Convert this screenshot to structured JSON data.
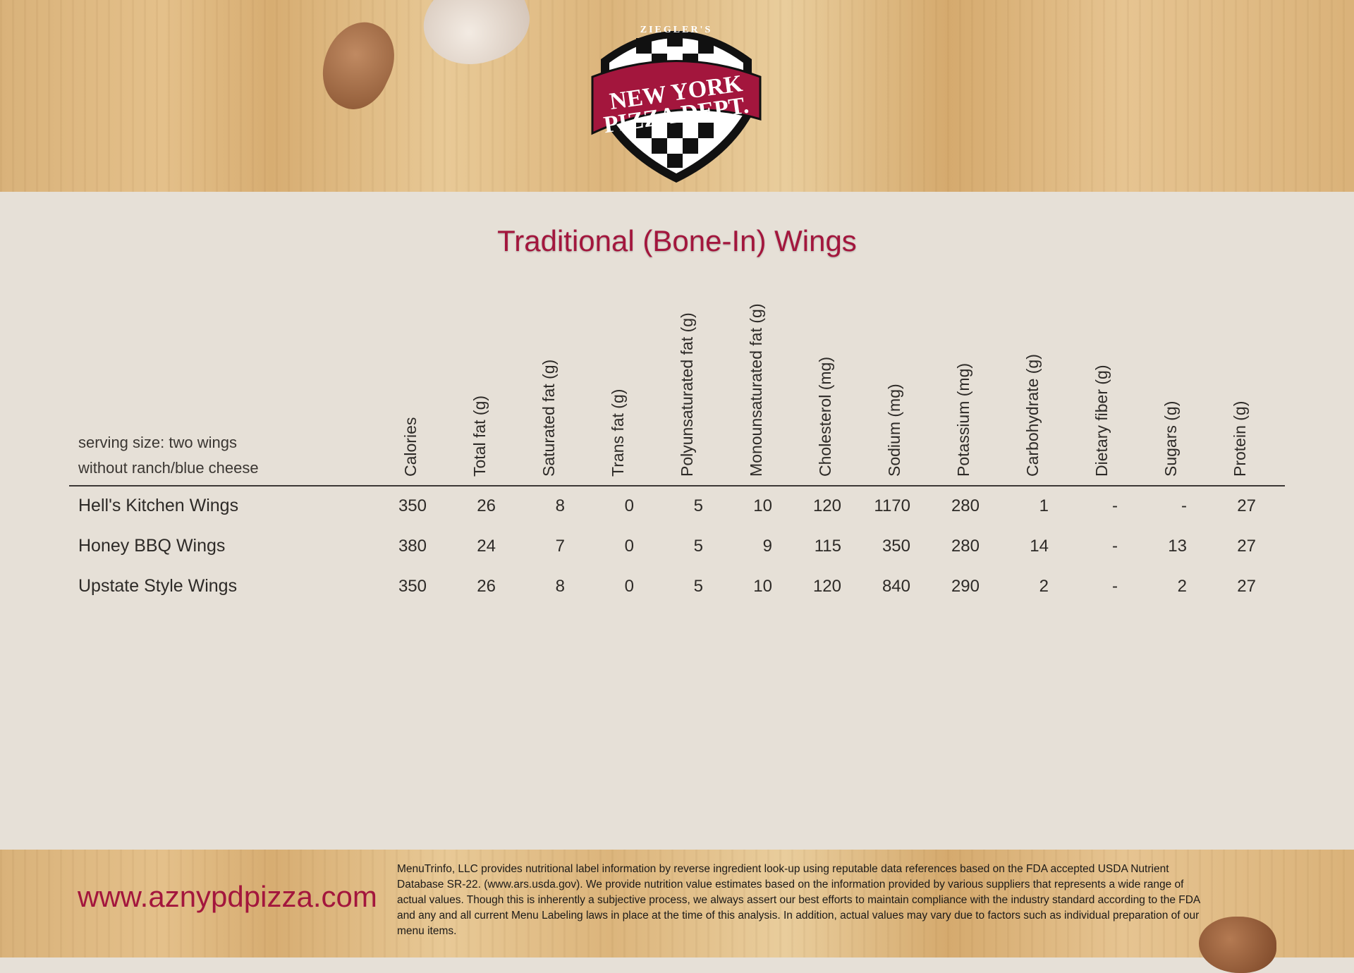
{
  "logo": {
    "top_text": "ZIEGLER'S",
    "line1": "NEW YORK",
    "line2": "PIZZA DEPT."
  },
  "title": "Traditional (Bone-In) Wings",
  "serving": {
    "line1": "serving size: two wings",
    "line2": "without ranch/blue cheese"
  },
  "columns": [
    "Calories",
    "Total fat (g)",
    "Saturated fat (g)",
    "Trans fat (g)",
    "Polyunsaturated fat (g)",
    "Monounsaturated fat (g)",
    "Cholesterol (mg)",
    "Sodium (mg)",
    "Potassium (mg)",
    "Carbohydrate (g)",
    "Dietary fiber (g)",
    "Sugars (g)",
    "Protein (g)"
  ],
  "rows": [
    {
      "name": "Hell's Kitchen Wings",
      "values": [
        "350",
        "26",
        "8",
        "0",
        "5",
        "10",
        "120",
        "1170",
        "280",
        "1",
        "-",
        "-",
        "27"
      ]
    },
    {
      "name": "Honey BBQ Wings",
      "values": [
        "380",
        "24",
        "7",
        "0",
        "5",
        "9",
        "115",
        "350",
        "280",
        "14",
        "-",
        "13",
        "27"
      ]
    },
    {
      "name": "Upstate Style Wings",
      "values": [
        "350",
        "26",
        "8",
        "0",
        "5",
        "10",
        "120",
        "840",
        "290",
        "2",
        "-",
        "2",
        "27"
      ]
    }
  ],
  "footer": {
    "url": "www.aznypdpizza.com",
    "disclaimer": "MenuTrinfo, LLC provides nutritional label information by reverse ingredient look-up using reputable data references based on the FDA accepted USDA Nutrient Database SR-22. (www.ars.usda.gov). We provide nutrition value estimates based on the information provided by various suppliers that represents a wide range of actual values. Though this is inherently a subjective process, we always assert our best efforts to maintain compliance with the industry standard according to the FDA and any and all current Menu Labeling laws in place at the time of this analysis. In addition, actual values may vary due to factors such as individual preparation of our menu items."
  },
  "colors": {
    "brand": "#a3163d",
    "panel": "#e6e0d7"
  }
}
